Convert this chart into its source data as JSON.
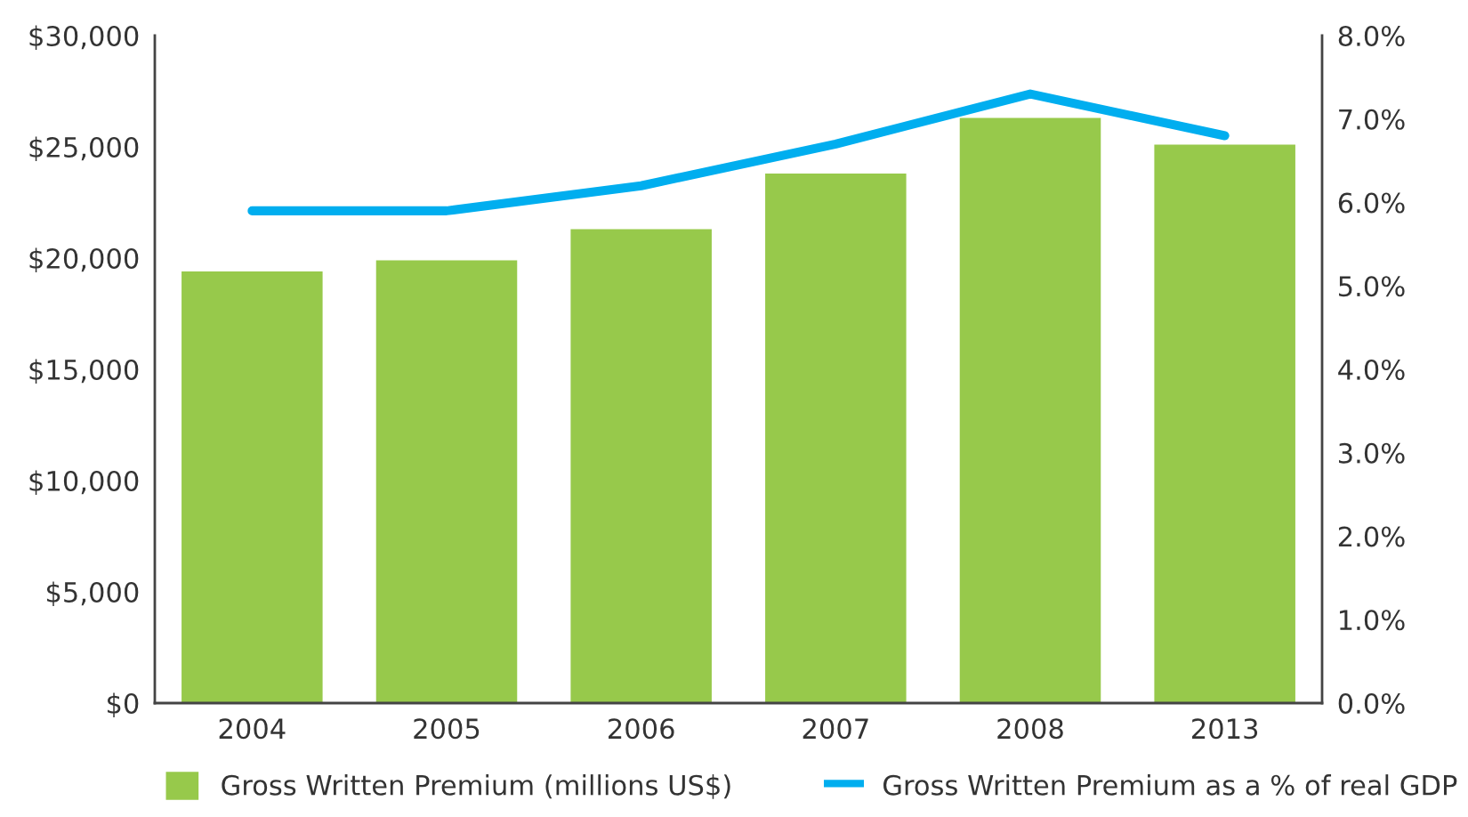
{
  "chart_data": {
    "type": "bar",
    "categories": [
      "2004",
      "2005",
      "2006",
      "2007",
      "2008",
      "2013"
    ],
    "series": [
      {
        "name": "Gross Written Premium (millions US$)",
        "color": "#97c94b",
        "values": [
          19400,
          19900,
          21300,
          23800,
          26300,
          25100
        ]
      },
      {
        "name": "Gross Written Premium as a % of real GDP",
        "type": "line",
        "axis": "y2",
        "color": "#00aeef",
        "values": [
          5.9,
          5.9,
          6.2,
          6.7,
          7.3,
          6.8
        ]
      }
    ],
    "ylim": [
      0,
      30000
    ],
    "yticks": [
      {
        "value": 0,
        "label": "$0"
      },
      {
        "value": 5000,
        "label": "$5,000"
      },
      {
        "value": 10000,
        "label": "$10,000"
      },
      {
        "value": 15000,
        "label": "$15,000"
      },
      {
        "value": 20000,
        "label": "$20,000"
      },
      {
        "value": 25000,
        "label": "$25,000"
      },
      {
        "value": 30000,
        "label": "$30,000"
      }
    ],
    "y2lim": [
      0,
      8
    ],
    "y2ticks": [
      {
        "value": 0,
        "label": "0.0%"
      },
      {
        "value": 1,
        "label": "1.0%"
      },
      {
        "value": 2,
        "label": "2.0%"
      },
      {
        "value": 3,
        "label": "3.0%"
      },
      {
        "value": 4,
        "label": "4.0%"
      },
      {
        "value": 5,
        "label": "5.0%"
      },
      {
        "value": 6,
        "label": "6.0%"
      },
      {
        "value": 7,
        "label": "7.0%"
      },
      {
        "value": 8,
        "label": "8.0%"
      }
    ],
    "legend": "bottom",
    "grid": false
  }
}
